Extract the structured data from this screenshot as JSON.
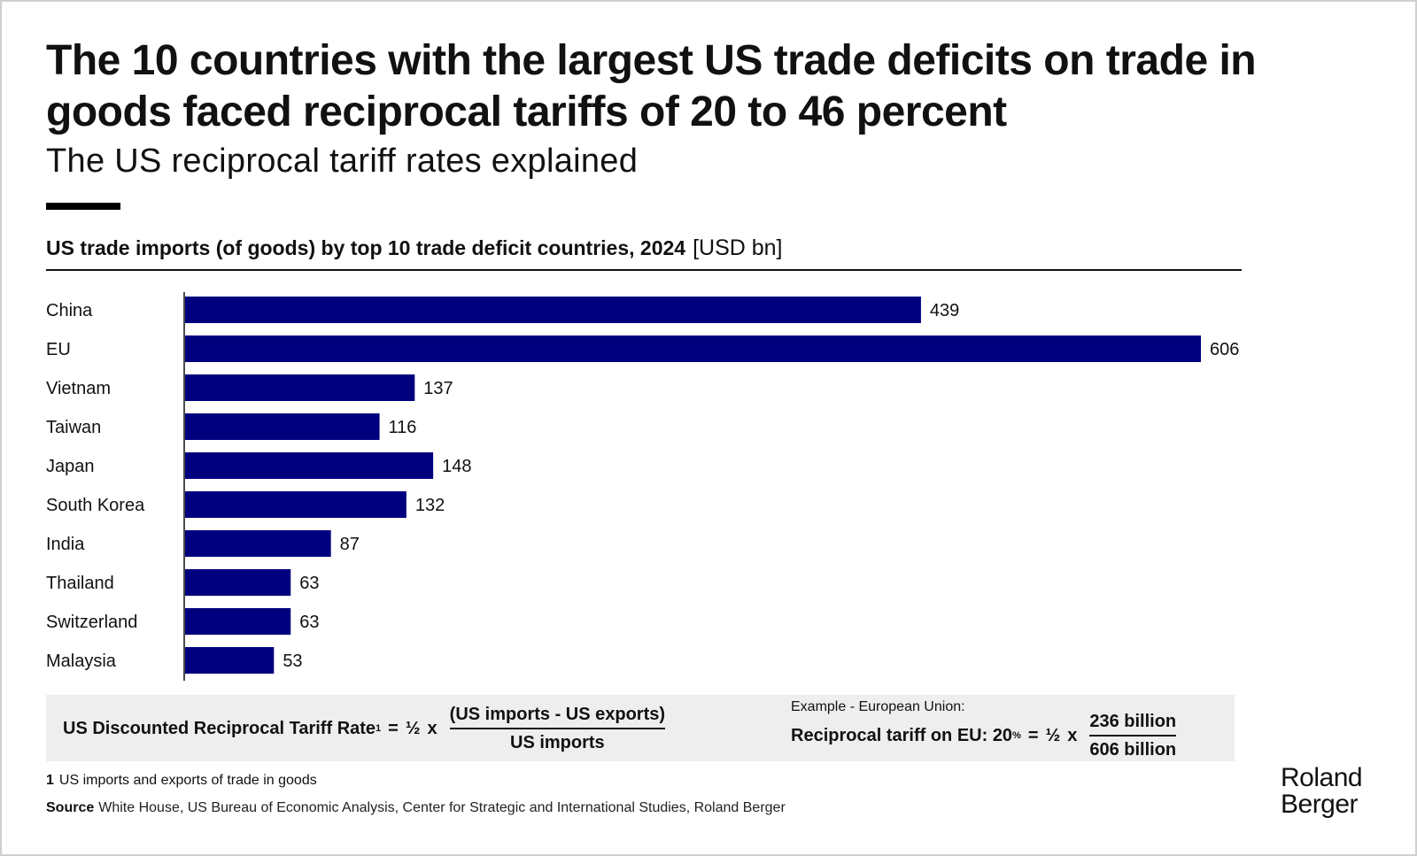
{
  "title": "The 10 countries with the largest US trade deficits on trade in goods faced reciprocal tariffs of 20 to 46 percent",
  "subtitle": "The US reciprocal tariff rates explained",
  "chart_heading": {
    "text": "US trade imports (of goods) by top 10 trade deficit countries, 2024",
    "unit": "[USD bn]"
  },
  "chart_data": {
    "type": "bar",
    "orientation": "horizontal",
    "title": "US trade imports (of goods) by top 10 trade deficit countries, 2024",
    "unit": "USD bn",
    "categories": [
      "China",
      "EU",
      "Vietnam",
      "Taiwan",
      "Japan",
      "South Korea",
      "India",
      "Thailand",
      "Switzerland",
      "Malaysia"
    ],
    "values": [
      439,
      606,
      137,
      116,
      148,
      132,
      87,
      63,
      63,
      53
    ],
    "xlim": [
      0,
      606
    ],
    "grid": false,
    "bar_color": "#00007f"
  },
  "formula": {
    "label": "US Discounted Reciprocal Tariff Rate",
    "footnote_ref": "1",
    "equals": "=",
    "half": "½",
    "times": "x",
    "numerator": "(US imports - US exports)",
    "denominator": "US imports"
  },
  "example": {
    "heading": "Example - European Union:",
    "label": "Reciprocal tariff on EU: 20",
    "percent_sign": "%",
    "equals": "=",
    "half": "½",
    "times": "x",
    "numerator": "236 billion",
    "denominator": "606 billion"
  },
  "footnote": {
    "number": "1",
    "text": "US imports and exports of trade in goods"
  },
  "source": {
    "label": "Source",
    "text": "White House, US Bureau of Economic Analysis, Center for Strategic and International Studies, Roland Berger"
  },
  "logo": {
    "line1": "Roland",
    "line2": "Berger"
  },
  "colors": {
    "bar": "#00007f",
    "formula_background": "#eeeeee",
    "text": "#111111"
  }
}
